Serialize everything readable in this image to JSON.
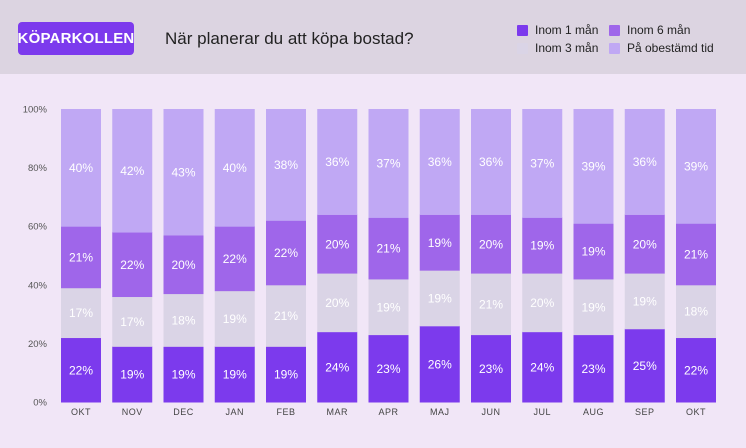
{
  "brand": "KÖPARKOLLEN",
  "question": "När planerar du att köpa bostad?",
  "colors": {
    "brand": "#7c3aed",
    "header_bg": "#dcd4e1",
    "page_bg": "#f1e6f7",
    "inom1": "#7c3aed",
    "inom3": "#dad4e6",
    "inom6": "#9f66ea",
    "obestamd": "#c0a8f4"
  },
  "legend": [
    {
      "label": "Inom 1 mån",
      "color": "#7c3aed"
    },
    {
      "label": "Inom 6 mån",
      "color": "#9f66ea"
    },
    {
      "label": "Inom 3 mån",
      "color": "#dad4e6"
    },
    {
      "label": "På obestämd tid",
      "color": "#c0a8f4"
    }
  ],
  "chart_data": {
    "type": "bar",
    "stacked": true,
    "title": "När planerar du att köpa bostad?",
    "ylim": [
      0,
      100
    ],
    "yticks": [
      "0%",
      "20%",
      "40%",
      "60%",
      "80%",
      "100%"
    ],
    "categories": [
      "OKT",
      "NOV",
      "DEC",
      "JAN",
      "FEB",
      "MAR",
      "APR",
      "MAJ",
      "JUN",
      "JUL",
      "AUG",
      "SEP",
      "OKT"
    ],
    "series": [
      {
        "name": "Inom 1 mån",
        "color": "#7c3aed",
        "text_color": "#ffffff",
        "values": [
          22,
          19,
          19,
          19,
          19,
          24,
          23,
          26,
          23,
          24,
          23,
          25,
          22
        ]
      },
      {
        "name": "Inom 3 mån",
        "color": "#dad4e6",
        "text_color": "#ffffff",
        "values": [
          17,
          17,
          18,
          19,
          21,
          20,
          19,
          19,
          21,
          20,
          19,
          19,
          18
        ]
      },
      {
        "name": "Inom 6 mån",
        "color": "#9f66ea",
        "text_color": "#ffffff",
        "values": [
          21,
          22,
          20,
          22,
          22,
          20,
          21,
          19,
          20,
          19,
          19,
          20,
          21
        ]
      },
      {
        "name": "På obestämd tid",
        "color": "#c0a8f4",
        "text_color": "#ffffff",
        "values": [
          40,
          42,
          43,
          40,
          38,
          36,
          37,
          36,
          36,
          37,
          39,
          36,
          39
        ]
      }
    ]
  }
}
